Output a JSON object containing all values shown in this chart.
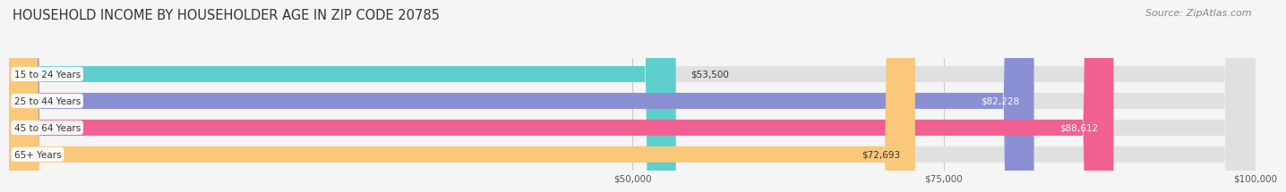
{
  "title": "HOUSEHOLD INCOME BY HOUSEHOLDER AGE IN ZIP CODE 20785",
  "source": "Source: ZipAtlas.com",
  "categories": [
    "15 to 24 Years",
    "25 to 44 Years",
    "45 to 64 Years",
    "65+ Years"
  ],
  "values": [
    53500,
    82228,
    88612,
    72693
  ],
  "bar_colors": [
    "#5ecfcc",
    "#8b8fd4",
    "#f06090",
    "#f9c87a"
  ],
  "bar_labels": [
    "$53,500",
    "$82,228",
    "$88,612",
    "$72,693"
  ],
  "label_colors": [
    "#333333",
    "#ffffff",
    "#ffffff",
    "#333333"
  ],
  "xlim": [
    0,
    100000
  ],
  "xticks": [
    50000,
    75000,
    100000
  ],
  "xtick_labels": [
    "$50,000",
    "$75,000",
    "$100,000"
  ],
  "background_color": "#f5f5f5",
  "bar_bg_color": "#e0e0e0",
  "title_fontsize": 10.5,
  "source_fontsize": 8,
  "bar_height": 0.6,
  "rounding_size": 2500
}
